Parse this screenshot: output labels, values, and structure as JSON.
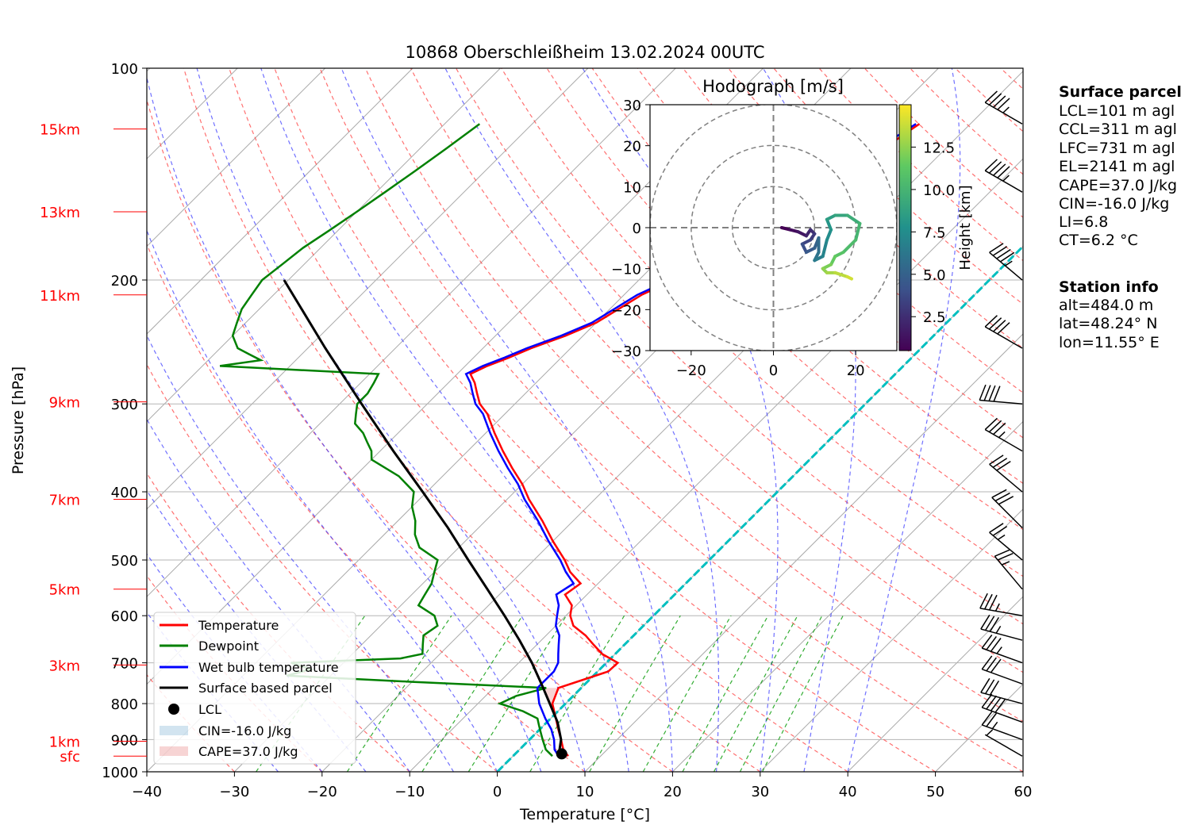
{
  "chart_data": {
    "type": "line",
    "title": "10868 Oberschleißheim 13.02.2024 00UTC",
    "xlabel": "Temperature [°C]",
    "ylabel": "Pressure [hPa]",
    "xlim": [
      -40,
      60
    ],
    "ylim": [
      1000,
      100
    ],
    "y_scale": "log",
    "skew_deg": 45,
    "grid": true,
    "x_ticks": [
      "−40",
      "−30",
      "−20",
      "−10",
      "0",
      "10",
      "20",
      "30",
      "40",
      "50",
      "60"
    ],
    "x_tick_values": [
      -40,
      -30,
      -20,
      -10,
      0,
      10,
      20,
      30,
      40,
      50,
      60
    ],
    "y_ticks": [
      "1000",
      "900",
      "800",
      "700",
      "600",
      "500",
      "400",
      "300",
      "200",
      "100"
    ],
    "y_tick_values": [
      1000,
      900,
      800,
      700,
      600,
      500,
      400,
      300,
      200,
      100
    ],
    "height_labels": [
      {
        "label": "sfc",
        "p": 950
      },
      {
        "label": "1km",
        "p": 905
      },
      {
        "label": "3km",
        "p": 705
      },
      {
        "label": "5km",
        "p": 550
      },
      {
        "label": "7km",
        "p": 410
      },
      {
        "label": "9km",
        "p": 298
      },
      {
        "label": "11km",
        "p": 210
      },
      {
        "label": "13km",
        "p": 160
      },
      {
        "label": "15km",
        "p": 122
      }
    ],
    "series": [
      {
        "name": "Temperature",
        "color": "#ff0000",
        "p": [
          950,
          930,
          900,
          870,
          840,
          800,
          760,
          720,
          700,
          680,
          660,
          640,
          620,
          600,
          580,
          560,
          540,
          520,
          500,
          470,
          440,
          410,
          390,
          370,
          350,
          330,
          310,
          300,
          290,
          280,
          272,
          265,
          258,
          250,
          240,
          230,
          220,
          210,
          200,
          190,
          180,
          170,
          160,
          150,
          140,
          130,
          125,
          120
        ],
        "t": [
          6.3,
          5.0,
          3.6,
          2.1,
          0.6,
          -1.5,
          -2.6,
          1.2,
          1.3,
          -1.5,
          -3.5,
          -5.5,
          -8.0,
          -9.5,
          -10.5,
          -12.5,
          -12.0,
          -14.5,
          -16.5,
          -20.0,
          -23.5,
          -27.5,
          -30.0,
          -33.0,
          -36.0,
          -39.0,
          -42.0,
          -44.0,
          -45.5,
          -47.0,
          -48.5,
          -47.5,
          -46.0,
          -44.5,
          -42.0,
          -40.0,
          -39.0,
          -38.0,
          -36.0,
          -34.5,
          -33.0,
          -31.5,
          -30.0,
          -28.5,
          -28.0,
          -27.0,
          -26.5,
          -25.8
        ]
      },
      {
        "name": "Dewpoint",
        "color": "#008000",
        "p": [
          950,
          930,
          900,
          880,
          860,
          840,
          820,
          800,
          780,
          760,
          745,
          730,
          715,
          700,
          690,
          680,
          660,
          640,
          620,
          600,
          580,
          560,
          540,
          520,
          500,
          480,
          460,
          440,
          420,
          400,
          380,
          360,
          350,
          340,
          330,
          320,
          310,
          300,
          290,
          280,
          272,
          265,
          260,
          255,
          250,
          240,
          230,
          220,
          210,
          200,
          190,
          180,
          170,
          160,
          150,
          140,
          130,
          120
        ],
        "t": [
          4.5,
          3.0,
          1.5,
          0.5,
          -0.5,
          -1.5,
          -4.0,
          -7.5,
          -6.5,
          -4.0,
          -20.0,
          -35.0,
          -33.0,
          -36.0,
          -24.0,
          -22.0,
          -23.0,
          -24.0,
          -23.5,
          -25.0,
          -28.0,
          -28.5,
          -29.0,
          -30.0,
          -31.0,
          -34.5,
          -36.5,
          -38.0,
          -40.0,
          -41.5,
          -45.0,
          -50.0,
          -51.0,
          -52.5,
          -54.0,
          -56.0,
          -57.0,
          -58.0,
          -58.0,
          -58.5,
          -59.0,
          -78.0,
          -74.0,
          -76.0,
          -78.0,
          -80.0,
          -81.0,
          -82.0,
          -82.5,
          -83.0,
          -82.5,
          -82.0,
          -81.0,
          -80.0,
          -79.0,
          -78.0,
          -77.0,
          -76.0
        ]
      },
      {
        "name": "Wet bulb temperature",
        "color": "#0000ff",
        "p": [
          950,
          930,
          900,
          870,
          840,
          800,
          760,
          720,
          700,
          680,
          660,
          640,
          620,
          600,
          580,
          560,
          540,
          520,
          500,
          470,
          440,
          410,
          390,
          370,
          350,
          330,
          310,
          300,
          290,
          280,
          272,
          265,
          258,
          250,
          240,
          230,
          220,
          210,
          200,
          190,
          180,
          170,
          160,
          150,
          140,
          130,
          125,
          120
        ],
        "t": [
          5.2,
          4.0,
          2.8,
          1.3,
          -0.6,
          -3.0,
          -5.0,
          -5.0,
          -5.5,
          -6.5,
          -7.5,
          -8.5,
          -10.0,
          -11.0,
          -12.0,
          -13.5,
          -12.8,
          -15.0,
          -17.0,
          -20.5,
          -24.0,
          -28.0,
          -30.5,
          -33.5,
          -36.5,
          -39.5,
          -42.5,
          -44.5,
          -46.0,
          -47.5,
          -49.0,
          -48.0,
          -46.5,
          -45.0,
          -42.5,
          -40.5,
          -39.5,
          -38.5,
          -36.5,
          -35.0,
          -33.5,
          -32.0,
          -30.5,
          -29.0,
          -28.5,
          -27.5,
          -27.0,
          -26.2
        ]
      },
      {
        "name": "Surface based parcel",
        "color": "#000000",
        "p": [
          950,
          900,
          850,
          800,
          750,
          700,
          650,
          600,
          550,
          500,
          450,
          400,
          350,
          300,
          250,
          200
        ],
        "t": [
          5.2,
          3.6,
          1.2,
          -1.8,
          -5.0,
          -8.5,
          -12.5,
          -17.0,
          -22.0,
          -27.5,
          -33.5,
          -40.5,
          -48.5,
          -57.5,
          -68.0,
          -80.5
        ]
      }
    ],
    "lcl": {
      "name": "LCL",
      "p": 943,
      "t": 5.3
    },
    "legend": {
      "position": "lower-left",
      "entries": [
        "Temperature",
        "Dewpoint",
        "Wet bulb temperature",
        "Surface based parcel",
        "LCL",
        "CIN=-16.0 J/kg",
        "CAPE=37.0 J/kg"
      ]
    },
    "zero_isotherm_color": "#00bfbf",
    "hodograph": {
      "title": "Hodograph [m/s]",
      "xlim": [
        -30,
        30
      ],
      "ylim": [
        -30,
        30
      ],
      "ticks": [
        "−30",
        "−20",
        "−10",
        "0",
        "10",
        "20",
        "30"
      ],
      "tick_values": [
        -30,
        -20,
        -10,
        0,
        10,
        20,
        30
      ],
      "colorbar_label": "Height [km]",
      "colorbar_ticks": [
        "2.5",
        "5.0",
        "7.5",
        "10.0",
        "12.5"
      ],
      "colorbar_tick_values": [
        2.5,
        5.0,
        7.5,
        10.0,
        12.5
      ],
      "height_range": [
        0.5,
        15
      ],
      "points": [
        [
          2,
          0,
          0.5
        ],
        [
          4,
          -0.5,
          1
        ],
        [
          6,
          -1,
          1.5
        ],
        [
          8,
          -2,
          2
        ],
        [
          9,
          -0.5,
          2.5
        ],
        [
          10,
          -1.5,
          3
        ],
        [
          9,
          -3,
          3.5
        ],
        [
          7,
          -4,
          4
        ],
        [
          8,
          -6,
          4.5
        ],
        [
          10,
          -5,
          5
        ],
        [
          11,
          -2.5,
          5.5
        ],
        [
          11,
          -6,
          6
        ],
        [
          10,
          -8,
          6.5
        ],
        [
          12,
          -7,
          7
        ],
        [
          13,
          -3,
          7.5
        ],
        [
          14,
          -0.5,
          8
        ],
        [
          13,
          2,
          8.5
        ],
        [
          15,
          3,
          9
        ],
        [
          18,
          3,
          9.5
        ],
        [
          21,
          1,
          10
        ],
        [
          20,
          -3,
          10.5
        ],
        [
          17,
          -6,
          11
        ],
        [
          15,
          -7,
          11.5
        ],
        [
          14,
          -9,
          12
        ],
        [
          12,
          -10,
          12.5
        ],
        [
          13,
          -11,
          13
        ],
        [
          15,
          -11,
          13.5
        ],
        [
          18,
          -12,
          14
        ],
        [
          19,
          -12.5,
          14.5
        ]
      ]
    },
    "wind_barbs": [
      {
        "p": 950,
        "dir": 300,
        "kt": 5
      },
      {
        "p": 900,
        "dir": 290,
        "kt": 25
      },
      {
        "p": 850,
        "dir": 290,
        "kt": 40
      },
      {
        "p": 800,
        "dir": 285,
        "kt": 30
      },
      {
        "p": 750,
        "dir": 290,
        "kt": 30
      },
      {
        "p": 700,
        "dir": 290,
        "kt": 35
      },
      {
        "p": 650,
        "dir": 285,
        "kt": 35
      },
      {
        "p": 600,
        "dir": 280,
        "kt": 35
      },
      {
        "p": 550,
        "dir": 320,
        "kt": 25
      },
      {
        "p": 500,
        "dir": 310,
        "kt": 25
      },
      {
        "p": 450,
        "dir": 315,
        "kt": 30
      },
      {
        "p": 400,
        "dir": 310,
        "kt": 30
      },
      {
        "p": 350,
        "dir": 300,
        "kt": 35
      },
      {
        "p": 300,
        "dir": 275,
        "kt": 40
      },
      {
        "p": 250,
        "dir": 300,
        "kt": 40
      },
      {
        "p": 200,
        "dir": 310,
        "kt": 45
      },
      {
        "p": 150,
        "dir": 300,
        "kt": 45
      },
      {
        "p": 120,
        "dir": 300,
        "kt": 45
      }
    ]
  },
  "info": {
    "parcel_title": "Surface parcel",
    "parcel_lines": [
      "LCL=101 m agl",
      "CCL=311 m agl",
      "LFC=731 m agl",
      "EL=2141 m agl",
      "CAPE=37.0 J/kg",
      "CIN=-16.0 J/kg",
      "LI=6.8",
      "CT=6.2 °C"
    ],
    "station_title": "Station info",
    "station_lines": [
      "alt=484.0 m",
      "lat=48.24° N",
      "lon=11.55° E"
    ]
  }
}
